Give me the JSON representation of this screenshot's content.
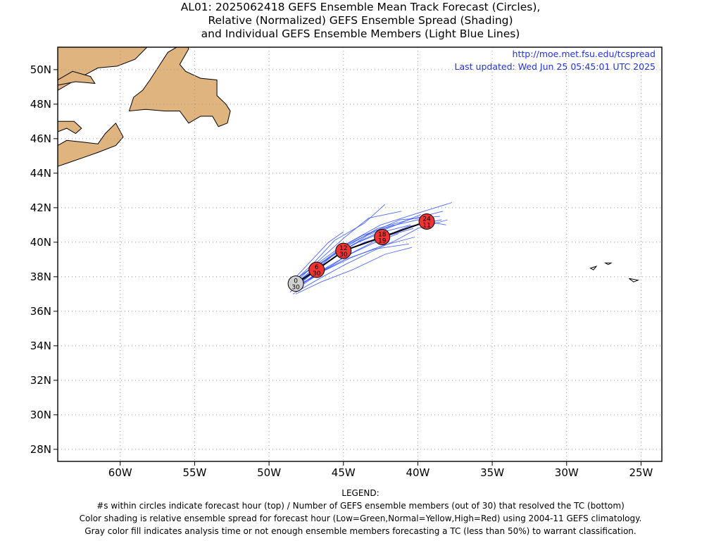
{
  "title": {
    "line1": "AL01: 2025062418 GEFS Ensemble Mean Track Forecast (Circles),",
    "line2": "Relative (Normalized) GEFS Ensemble Spread (Shading)",
    "line3": "and Individual GEFS Ensemble Members (Light Blue Lines)"
  },
  "header_info": {
    "url": "http://moe.met.fsu.edu/tcspread",
    "updated": "Last updated: Wed Jun 25 05:45:01 UTC 2025"
  },
  "legend": {
    "heading": "LEGEND:",
    "lines": [
      "#s within circles indicate forecast hour (top) / Number of GEFS ensemble members (out of 30) that resolved the TC (bottom)",
      "Color shading is relative ensemble spread for forecast hour (Low=Green,Normal=Yellow,High=Red) using 2004-11 GEFS climatology.",
      "Gray color fill indicates analysis time or not enough ensemble members forecasting a TC (less than 50%) to warrant classification."
    ]
  },
  "colors": {
    "land": "#dfb47f",
    "member_line": "#3050ff",
    "mean_line": "#000000",
    "high_spread": "#ee3333",
    "analysis": "#d0d0d0",
    "link_text": "#2233dd",
    "grid": "#999999"
  },
  "chart_data": {
    "type": "map",
    "xlim": [
      -64.2,
      -23.6
    ],
    "ylim": [
      27.3,
      51.3
    ],
    "x_ticks": [
      {
        "value": -60,
        "label": "60W"
      },
      {
        "value": -55,
        "label": "55W"
      },
      {
        "value": -50,
        "label": "50W"
      },
      {
        "value": -45,
        "label": "45W"
      },
      {
        "value": -40,
        "label": "40W"
      },
      {
        "value": -35,
        "label": "35W"
      },
      {
        "value": -30,
        "label": "30W"
      },
      {
        "value": -25,
        "label": "25W"
      }
    ],
    "y_ticks": [
      {
        "value": 28,
        "label": "28N"
      },
      {
        "value": 30,
        "label": "30N"
      },
      {
        "value": 32,
        "label": "32N"
      },
      {
        "value": 34,
        "label": "34N"
      },
      {
        "value": 36,
        "label": "36N"
      },
      {
        "value": 38,
        "label": "38N"
      },
      {
        "value": 40,
        "label": "40N"
      },
      {
        "value": 42,
        "label": "42N"
      },
      {
        "value": 44,
        "label": "44N"
      },
      {
        "value": 46,
        "label": "46N"
      },
      {
        "value": 48,
        "label": "48N"
      },
      {
        "value": 50,
        "label": "50N"
      }
    ],
    "grid": true,
    "mean_track": [
      {
        "hour": "0",
        "members": "30",
        "lon": -48.2,
        "lat": 37.6,
        "spread": "analysis"
      },
      {
        "hour": "6",
        "members": "30",
        "lon": -46.8,
        "lat": 38.4,
        "spread": "high"
      },
      {
        "hour": "12",
        "members": "30",
        "lon": -45.0,
        "lat": 39.5,
        "spread": "high"
      },
      {
        "hour": "18",
        "members": "19",
        "lon": -42.4,
        "lat": 40.3,
        "spread": "high"
      },
      {
        "hour": "24",
        "members": "11",
        "lon": -39.4,
        "lat": 41.2,
        "spread": "high"
      }
    ],
    "member_tracks": [
      [
        [
          -48.6,
          37.1
        ],
        [
          -46.7,
          38.5
        ],
        [
          -45.1,
          39.7
        ],
        [
          -43.0,
          40.6
        ],
        [
          -41.2,
          41.3
        ],
        [
          -38.5,
          41.5
        ]
      ],
      [
        [
          -48.5,
          37.4
        ],
        [
          -46.8,
          38.6
        ],
        [
          -44.8,
          39.9
        ],
        [
          -42.5,
          41.0
        ],
        [
          -40.3,
          41.6
        ],
        [
          -37.7,
          42.3
        ]
      ],
      [
        [
          -48.3,
          37.3
        ],
        [
          -46.6,
          38.3
        ],
        [
          -44.6,
          39.3
        ],
        [
          -42.6,
          40.2
        ],
        [
          -40.7,
          40.9
        ],
        [
          -38.4,
          41.3
        ]
      ],
      [
        [
          -48.4,
          37.2
        ],
        [
          -46.9,
          38.1
        ],
        [
          -44.9,
          39.0
        ],
        [
          -42.9,
          39.6
        ],
        [
          -40.6,
          39.9
        ]
      ],
      [
        [
          -48.2,
          37.0
        ],
        [
          -46.5,
          37.7
        ],
        [
          -44.4,
          38.4
        ],
        [
          -42.2,
          39.3
        ],
        [
          -40.4,
          39.7
        ]
      ],
      [
        [
          -48.6,
          37.5
        ],
        [
          -47.0,
          38.8
        ],
        [
          -45.6,
          40.1
        ],
        [
          -43.6,
          41.1
        ],
        [
          -42.2,
          42.2
        ]
      ],
      [
        [
          -48.3,
          37.6
        ],
        [
          -46.7,
          38.9
        ],
        [
          -44.9,
          40.3
        ],
        [
          -43.3,
          41.4
        ],
        [
          -41.1,
          41.8
        ]
      ],
      [
        [
          -48.5,
          37.3
        ],
        [
          -46.8,
          38.4
        ],
        [
          -45.1,
          39.4
        ],
        [
          -43.4,
          40.4
        ],
        [
          -41.6,
          41.0
        ]
      ],
      [
        [
          -48.2,
          37.4
        ],
        [
          -46.4,
          38.3
        ],
        [
          -44.5,
          39.1
        ],
        [
          -42.4,
          39.8
        ],
        [
          -40.2,
          40.3
        ]
      ],
      [
        [
          -48.4,
          37.5
        ],
        [
          -46.6,
          38.7
        ],
        [
          -44.7,
          39.8
        ],
        [
          -42.7,
          40.8
        ],
        [
          -40.6,
          41.3
        ],
        [
          -38.3,
          41.8
        ]
      ],
      [
        [
          -48.6,
          37.6
        ],
        [
          -47.2,
          38.9
        ],
        [
          -46.0,
          40.0
        ],
        [
          -45.0,
          40.6
        ]
      ],
      [
        [
          -48.3,
          37.2
        ],
        [
          -46.6,
          38.2
        ],
        [
          -44.8,
          39.2
        ],
        [
          -43.1,
          39.9
        ],
        [
          -41.3,
          40.5
        ]
      ],
      [
        [
          -48.2,
          37.5
        ],
        [
          -46.9,
          38.0
        ],
        [
          -46.0,
          38.6
        ]
      ],
      [
        [
          -48.5,
          37.7
        ],
        [
          -47.1,
          38.5
        ],
        [
          -45.6,
          39.3
        ],
        [
          -44.0,
          40.0
        ],
        [
          -42.3,
          40.6
        ],
        [
          -40.5,
          41.0
        ]
      ],
      [
        [
          -48.4,
          37.0
        ],
        [
          -46.6,
          37.9
        ],
        [
          -44.9,
          38.7
        ],
        [
          -43.0,
          39.5
        ],
        [
          -41.5,
          40.1
        ],
        [
          -40.0,
          40.8
        ],
        [
          -38.0,
          41.3
        ]
      ],
      [
        [
          -48.3,
          37.8
        ],
        [
          -47.0,
          38.6
        ],
        [
          -45.4,
          39.6
        ],
        [
          -43.7,
          40.4
        ],
        [
          -42.0,
          40.9
        ],
        [
          -40.0,
          41.3
        ],
        [
          -38.1,
          41.0
        ]
      ],
      [
        [
          -48.5,
          37.2
        ],
        [
          -46.5,
          38.6
        ],
        [
          -44.3,
          39.9
        ],
        [
          -42.3,
          40.7
        ],
        [
          -39.8,
          41.6
        ]
      ],
      [
        [
          -48.6,
          37.4
        ],
        [
          -46.9,
          38.4
        ],
        [
          -45.3,
          39.3
        ],
        [
          -43.6,
          40.0
        ],
        [
          -41.9,
          40.4
        ],
        [
          -40.3,
          40.8
        ]
      ]
    ],
    "land": [
      {
        "name": "newfoundland",
        "points": [
          [
            -59.4,
            47.6
          ],
          [
            -59.1,
            48.4
          ],
          [
            -58.5,
            48.8
          ],
          [
            -58.0,
            49.4
          ],
          [
            -57.4,
            50.2
          ],
          [
            -56.8,
            51.0
          ],
          [
            -55.6,
            51.6
          ],
          [
            -55.4,
            51.2
          ],
          [
            -56.0,
            50.3
          ],
          [
            -55.6,
            49.9
          ],
          [
            -54.6,
            49.5
          ],
          [
            -53.5,
            49.4
          ],
          [
            -53.5,
            48.5
          ],
          [
            -52.9,
            48.0
          ],
          [
            -52.6,
            47.6
          ],
          [
            -52.8,
            46.9
          ],
          [
            -53.4,
            46.7
          ],
          [
            -53.8,
            47.3
          ],
          [
            -54.6,
            47.3
          ],
          [
            -55.4,
            46.9
          ],
          [
            -56.0,
            47.6
          ],
          [
            -57.0,
            47.6
          ],
          [
            -58.3,
            47.7
          ]
        ]
      },
      {
        "name": "labrador",
        "points": [
          [
            -64.2,
            51.3
          ],
          [
            -64.2,
            48.8
          ],
          [
            -63.0,
            49.4
          ],
          [
            -61.5,
            50.1
          ],
          [
            -60.2,
            50.2
          ],
          [
            -59.0,
            50.6
          ],
          [
            -58.2,
            51.3
          ]
        ]
      },
      {
        "name": "cape-breton-ns",
        "points": [
          [
            -64.2,
            45.6
          ],
          [
            -63.6,
            45.9
          ],
          [
            -62.5,
            45.8
          ],
          [
            -61.5,
            45.7
          ],
          [
            -61.0,
            46.3
          ],
          [
            -60.3,
            46.9
          ],
          [
            -59.8,
            46.1
          ],
          [
            -60.3,
            45.6
          ],
          [
            -61.5,
            45.2
          ],
          [
            -62.5,
            44.9
          ],
          [
            -63.5,
            44.6
          ],
          [
            -64.2,
            44.4
          ]
        ]
      },
      {
        "name": "gaspe",
        "points": [
          [
            -64.2,
            46.4
          ],
          [
            -63.6,
            46.6
          ],
          [
            -63.0,
            46.3
          ],
          [
            -62.6,
            46.6
          ],
          [
            -63.1,
            47.0
          ],
          [
            -64.2,
            47.0
          ]
        ]
      },
      {
        "name": "anticosti",
        "points": [
          [
            -64.2,
            49.4
          ],
          [
            -63.2,
            49.9
          ],
          [
            -62.0,
            49.6
          ],
          [
            -61.7,
            49.2
          ],
          [
            -63.0,
            49.3
          ],
          [
            -64.2,
            49.1
          ]
        ]
      }
    ],
    "islands": [
      {
        "name": "flores",
        "points": [
          [
            -28.4,
            38.5
          ],
          [
            -28.0,
            38.6
          ],
          [
            -28.2,
            38.4
          ]
        ]
      },
      {
        "name": "graciosa",
        "points": [
          [
            -27.4,
            38.8
          ],
          [
            -27.0,
            38.8
          ],
          [
            -27.2,
            38.7
          ]
        ]
      },
      {
        "name": "sao-miguel",
        "points": [
          [
            -25.8,
            37.9
          ],
          [
            -25.2,
            37.8
          ],
          [
            -25.5,
            37.7
          ]
        ]
      }
    ]
  }
}
